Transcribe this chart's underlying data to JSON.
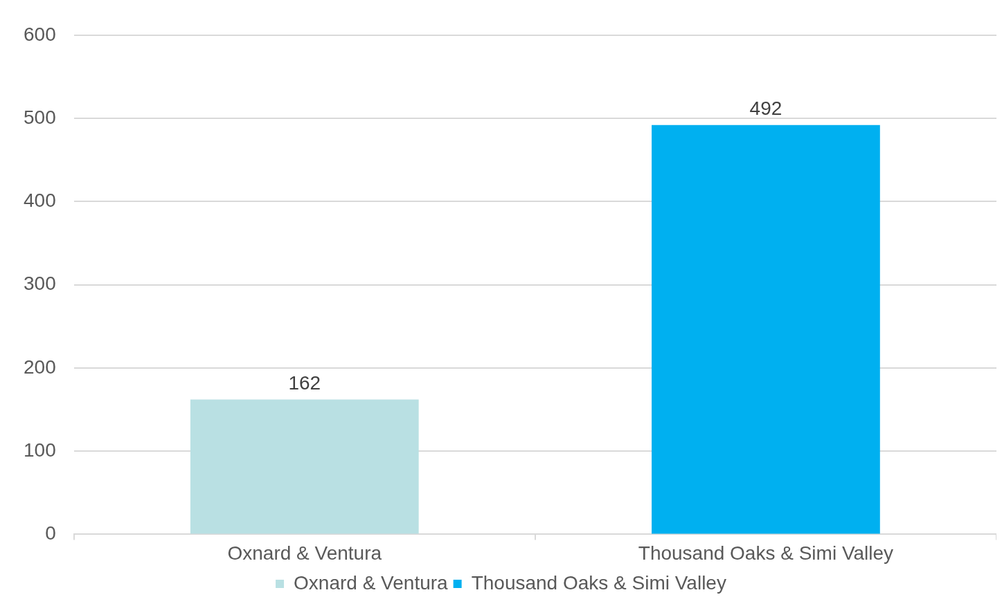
{
  "chart_data": {
    "type": "bar",
    "categories": [
      "Oxnard & Ventura",
      "Thousand Oaks & Simi Valley"
    ],
    "series": [
      {
        "name": "Oxnard & Ventura",
        "color": "#b9e0e3",
        "values": [
          162,
          null
        ]
      },
      {
        "name": "Thousand Oaks & Simi Valley",
        "color": "#00b0f0",
        "values": [
          null,
          492
        ]
      }
    ],
    "ylim": [
      0,
      600
    ],
    "yticks": [
      0,
      100,
      200,
      300,
      400,
      500,
      600
    ],
    "grid": "y",
    "legend": "bottom",
    "data_labels": true
  }
}
